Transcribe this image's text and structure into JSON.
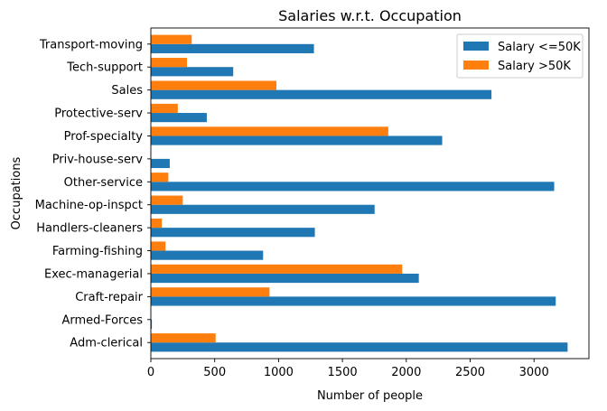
{
  "chart_data": {
    "type": "bar",
    "orientation": "horizontal",
    "title": "Salaries w.r.t. Occupation",
    "xlabel": "Number of people",
    "ylabel": "Occupations",
    "categories": [
      "Adm-clerical",
      "Armed-Forces",
      "Craft-repair",
      "Exec-managerial",
      "Farming-fishing",
      "Handlers-cleaners",
      "Machine-op-inspct",
      "Other-service",
      "Priv-house-serv",
      "Prof-specialty",
      "Protective-serv",
      "Sales",
      "Tech-support",
      "Transport-moving"
    ],
    "series": [
      {
        "name": "Salary <=50K",
        "color": "#1f77b4",
        "values": [
          3263,
          8,
          3170,
          2098,
          879,
          1284,
          1752,
          3158,
          148,
          2281,
          438,
          2667,
          645,
          1277
        ]
      },
      {
        "name": "Salary >50K",
        "color": "#ff7f0e",
        "values": [
          507,
          1,
          929,
          1968,
          115,
          86,
          250,
          137,
          1,
          1859,
          211,
          983,
          283,
          320
        ]
      }
    ],
    "xlim": [
      0,
      3430
    ],
    "xticks": [
      "0",
      "500",
      "1000",
      "1500",
      "2000",
      "2500",
      "3000"
    ],
    "grid": false,
    "legend_position": "upper right"
  }
}
